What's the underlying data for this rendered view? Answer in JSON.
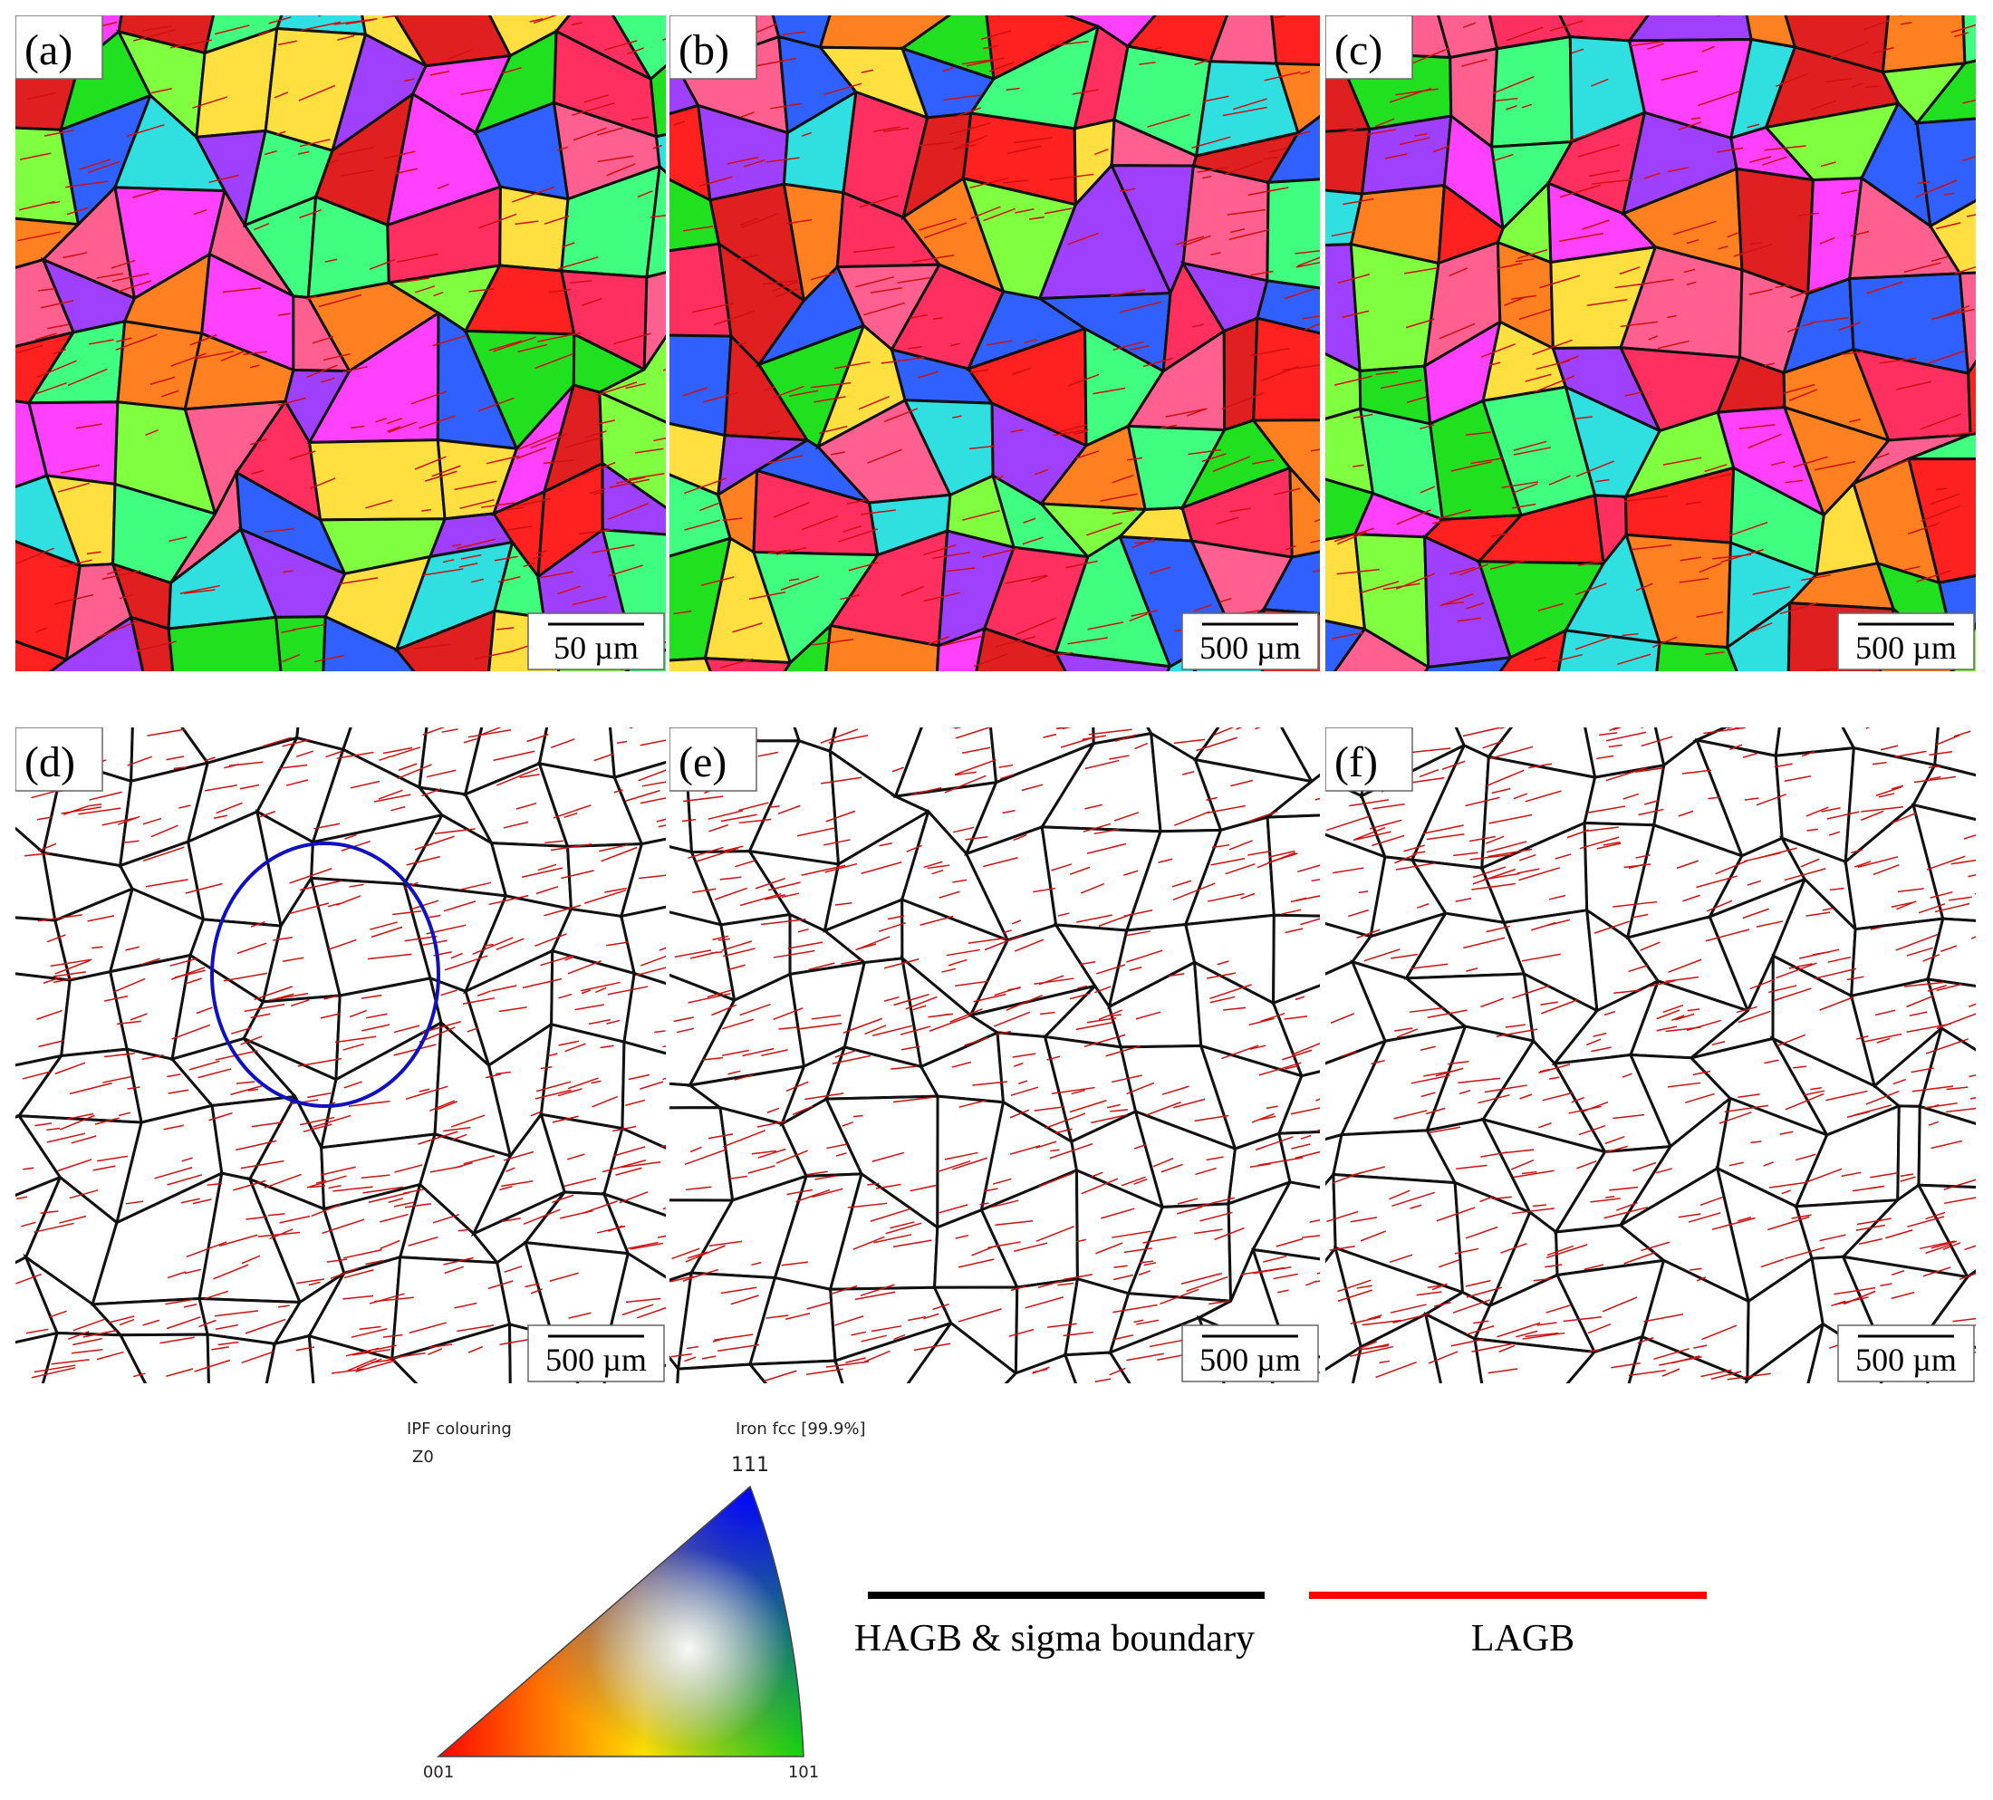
{
  "panels": [
    {
      "label": "(a)",
      "scale_bar": "50 µm"
    },
    {
      "label": "(b)",
      "scale_bar": "500 µm"
    },
    {
      "label": "(c)",
      "scale_bar": "500 µm"
    },
    {
      "label": "(d)",
      "scale_bar": "500 µm"
    },
    {
      "label": "(e)",
      "scale_bar": "500 µm"
    },
    {
      "label": "(f)",
      "scale_bar": "500 µm"
    }
  ],
  "ipf_key": {
    "title": "IPF colouring",
    "direction": "Z0",
    "phase": "Iron fcc [99.9%]",
    "corner_top": "111",
    "corner_left": "001",
    "corner_right": "101"
  },
  "boundary_legend": {
    "black": "HAGB & sigma boundary",
    "red": "LAGB"
  }
}
